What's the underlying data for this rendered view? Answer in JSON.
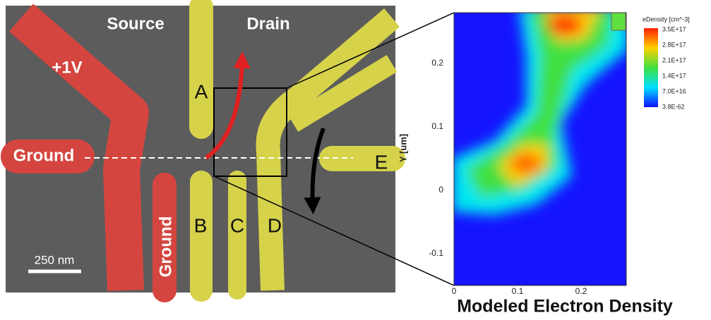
{
  "image": {
    "labels": {
      "source": "Source",
      "drain": "Drain",
      "plus_voltage": "+1V",
      "ground_left": "Ground",
      "ground_bottom": "Ground",
      "gate_a": "A",
      "gate_b": "B",
      "gate_c": "C",
      "gate_d": "D",
      "gate_e": "E"
    },
    "scale_bar": "250 nm"
  },
  "plot": {
    "title": "Modeled Electron Density",
    "y_label": "Y [um]",
    "yticks": [
      "0.2",
      "0.1",
      "0",
      "-0.1"
    ],
    "xticks": [
      "0",
      "0.1",
      "0.2"
    ],
    "colorbar": {
      "title": "eDensity [cm^-3]",
      "labels": [
        "3.5E+17",
        "2.8E+17",
        "2.1E+17",
        "1.4E+17",
        "7.0E+16",
        "3.8E-62"
      ]
    }
  }
}
